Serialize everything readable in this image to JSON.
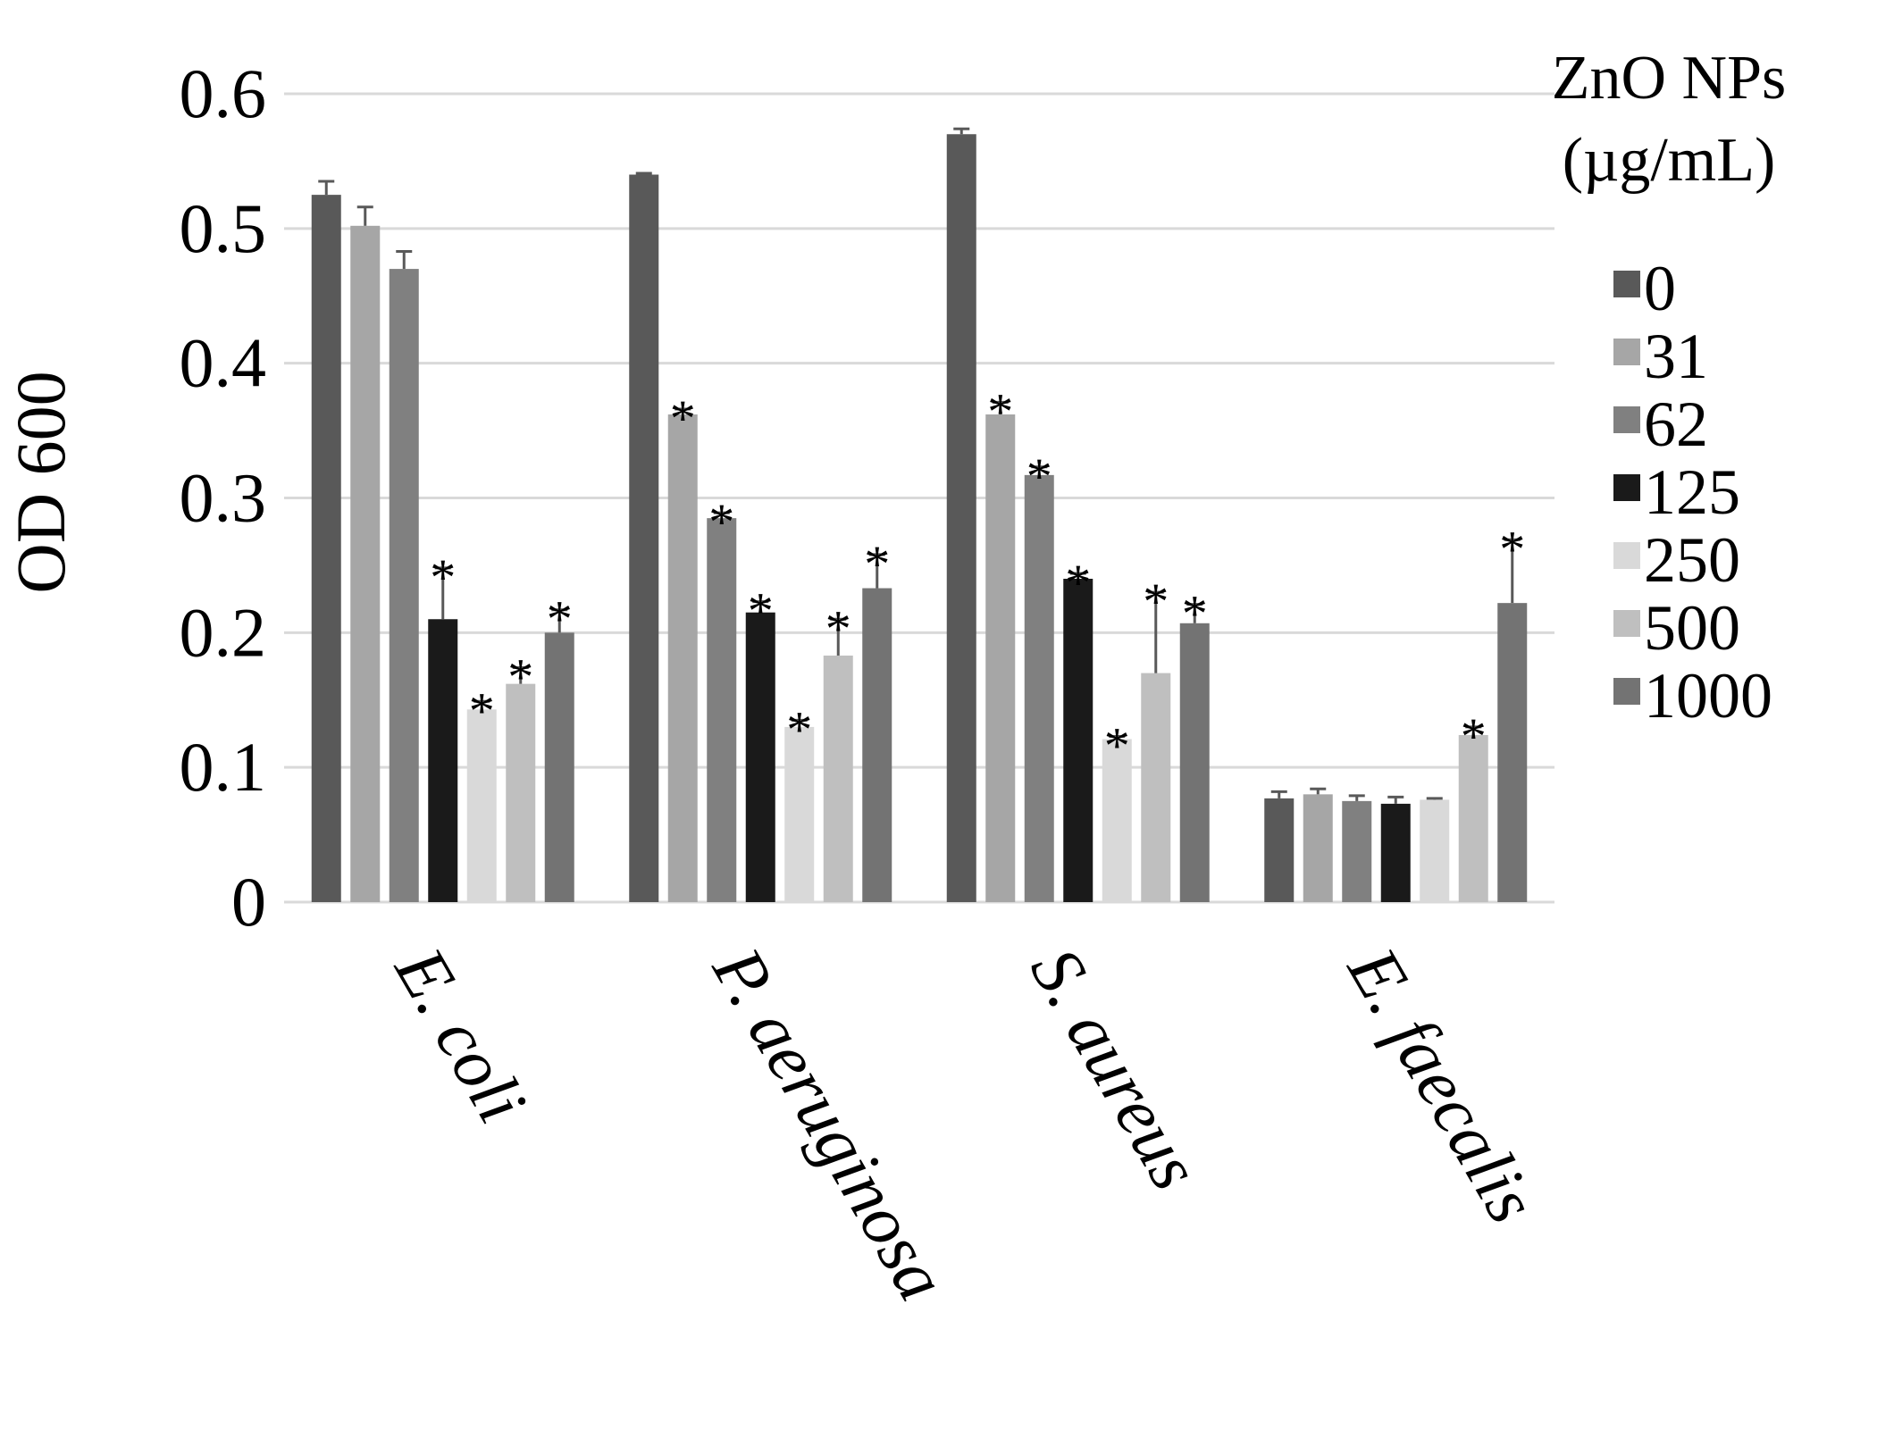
{
  "chart_data": {
    "type": "bar",
    "title": "",
    "xlabel": "",
    "ylabel": "OD 600",
    "ylim": [
      0,
      0.6
    ],
    "yticks": [
      "0",
      "0.1",
      "0.2",
      "0.3",
      "0.4",
      "0.5",
      "0.6"
    ],
    "grid": true,
    "legend_position": "right",
    "legend_title": [
      "ZnO NPs",
      "(µg/mL)"
    ],
    "categories": [
      "E. coli",
      "P. aeruginosa",
      "S. aureus",
      "E. faecalis"
    ],
    "series": [
      {
        "name": "0",
        "color": "#595959",
        "values": [
          0.525,
          0.54,
          0.57,
          0.077
        ],
        "errors": [
          0.01,
          0.001,
          0.004,
          0.005
        ],
        "significant": [
          false,
          false,
          false,
          false
        ]
      },
      {
        "name": "31",
        "color": "#a6a6a6",
        "values": [
          0.502,
          0.362,
          0.362,
          0.08
        ],
        "errors": [
          0.014,
          0.004,
          0.009,
          0.004
        ],
        "significant": [
          false,
          true,
          true,
          false
        ]
      },
      {
        "name": "62",
        "color": "#808080",
        "values": [
          0.47,
          0.285,
          0.317,
          0.075
        ],
        "errors": [
          0.013,
          0.004,
          0.006,
          0.004
        ],
        "significant": [
          false,
          true,
          true,
          false
        ]
      },
      {
        "name": "125",
        "color": "#1a1a1a",
        "values": [
          0.21,
          0.215,
          0.24,
          0.073
        ],
        "errors": [
          0.038,
          0.008,
          0.004,
          0.005
        ],
        "significant": [
          true,
          true,
          true,
          false
        ]
      },
      {
        "name": "250",
        "color": "#d9d9d9",
        "values": [
          0.143,
          0.13,
          0.121,
          0.076
        ],
        "errors": [
          0.006,
          0.005,
          0.002,
          0.001
        ],
        "significant": [
          true,
          true,
          true,
          false
        ]
      },
      {
        "name": "500",
        "color": "#bfbfbf",
        "values": [
          0.162,
          0.183,
          0.17,
          0.124
        ],
        "errors": [
          0.012,
          0.027,
          0.06,
          0.006
        ],
        "significant": [
          true,
          true,
          true,
          true
        ]
      },
      {
        "name": "1000",
        "color": "#737373",
        "values": [
          0.2,
          0.233,
          0.207,
          0.222
        ],
        "errors": [
          0.017,
          0.025,
          0.014,
          0.047
        ],
        "significant": [
          true,
          true,
          true,
          true
        ]
      }
    ]
  },
  "colors": {
    "grid": "#d9d9d9",
    "error_bar": "#595959"
  }
}
